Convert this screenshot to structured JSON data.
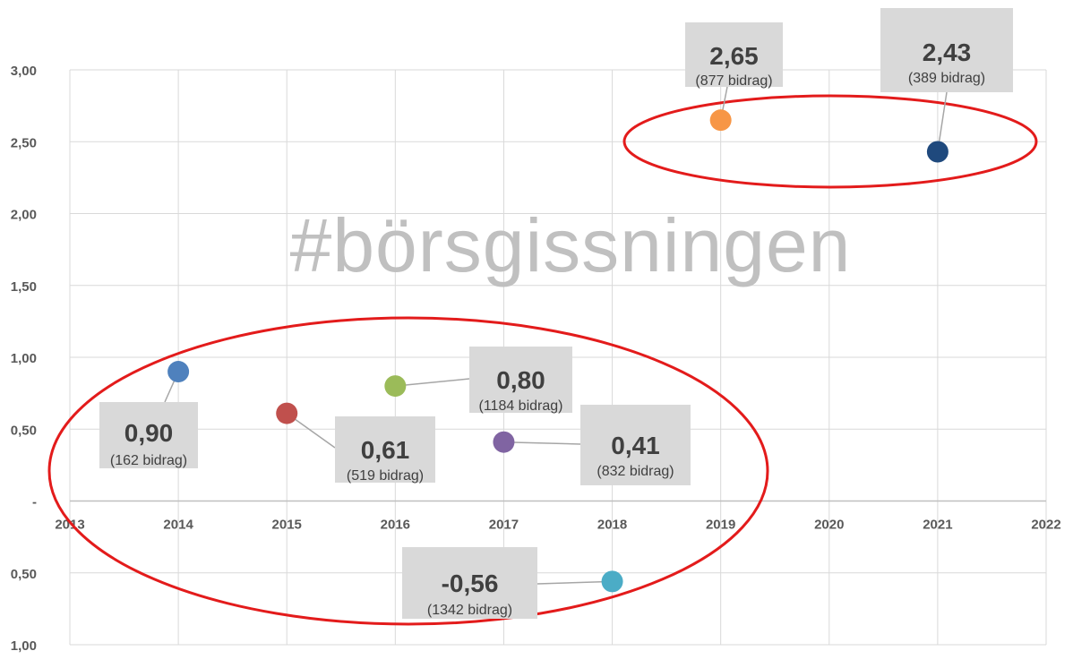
{
  "chart_data": {
    "type": "scatter",
    "watermark": "#börsgissningen",
    "x_ticks": [
      "2013",
      "2014",
      "2015",
      "2016",
      "2017",
      "2018",
      "2019",
      "2020",
      "2021",
      "2022"
    ],
    "y_ticks": [
      "3,00",
      "2,50",
      "2,00",
      "1,50",
      "1,00",
      "0,50",
      "-",
      "0,50",
      "1,00"
    ],
    "xlim": [
      2013,
      2022
    ],
    "ylim": [
      -1.0,
      3.0
    ],
    "grid": true,
    "points": [
      {
        "x": 2014,
        "y": 0.9,
        "label": "0,90",
        "count": "(162 bidrag)",
        "color": "#4f81bd"
      },
      {
        "x": 2015,
        "y": 0.61,
        "label": "0,61",
        "count": "(519 bidrag)",
        "color": "#c0504d"
      },
      {
        "x": 2016,
        "y": 0.8,
        "label": "0,80",
        "count": "(1184 bidrag)",
        "color": "#9bbb59"
      },
      {
        "x": 2017,
        "y": 0.41,
        "label": "0,41",
        "count": "(832 bidrag)",
        "color": "#8064a2"
      },
      {
        "x": 2018,
        "y": -0.56,
        "label": "-0,56",
        "count": "(1342 bidrag)",
        "color": "#4bacc6"
      },
      {
        "x": 2019,
        "y": 2.65,
        "label": "2,65",
        "count": "(877 bidrag)",
        "color": "#f79646"
      },
      {
        "x": 2021,
        "y": 2.43,
        "label": "2,43",
        "count": "(389 bidrag)",
        "color": "#1f497d"
      }
    ],
    "highlight_color": "#e31b1b"
  }
}
